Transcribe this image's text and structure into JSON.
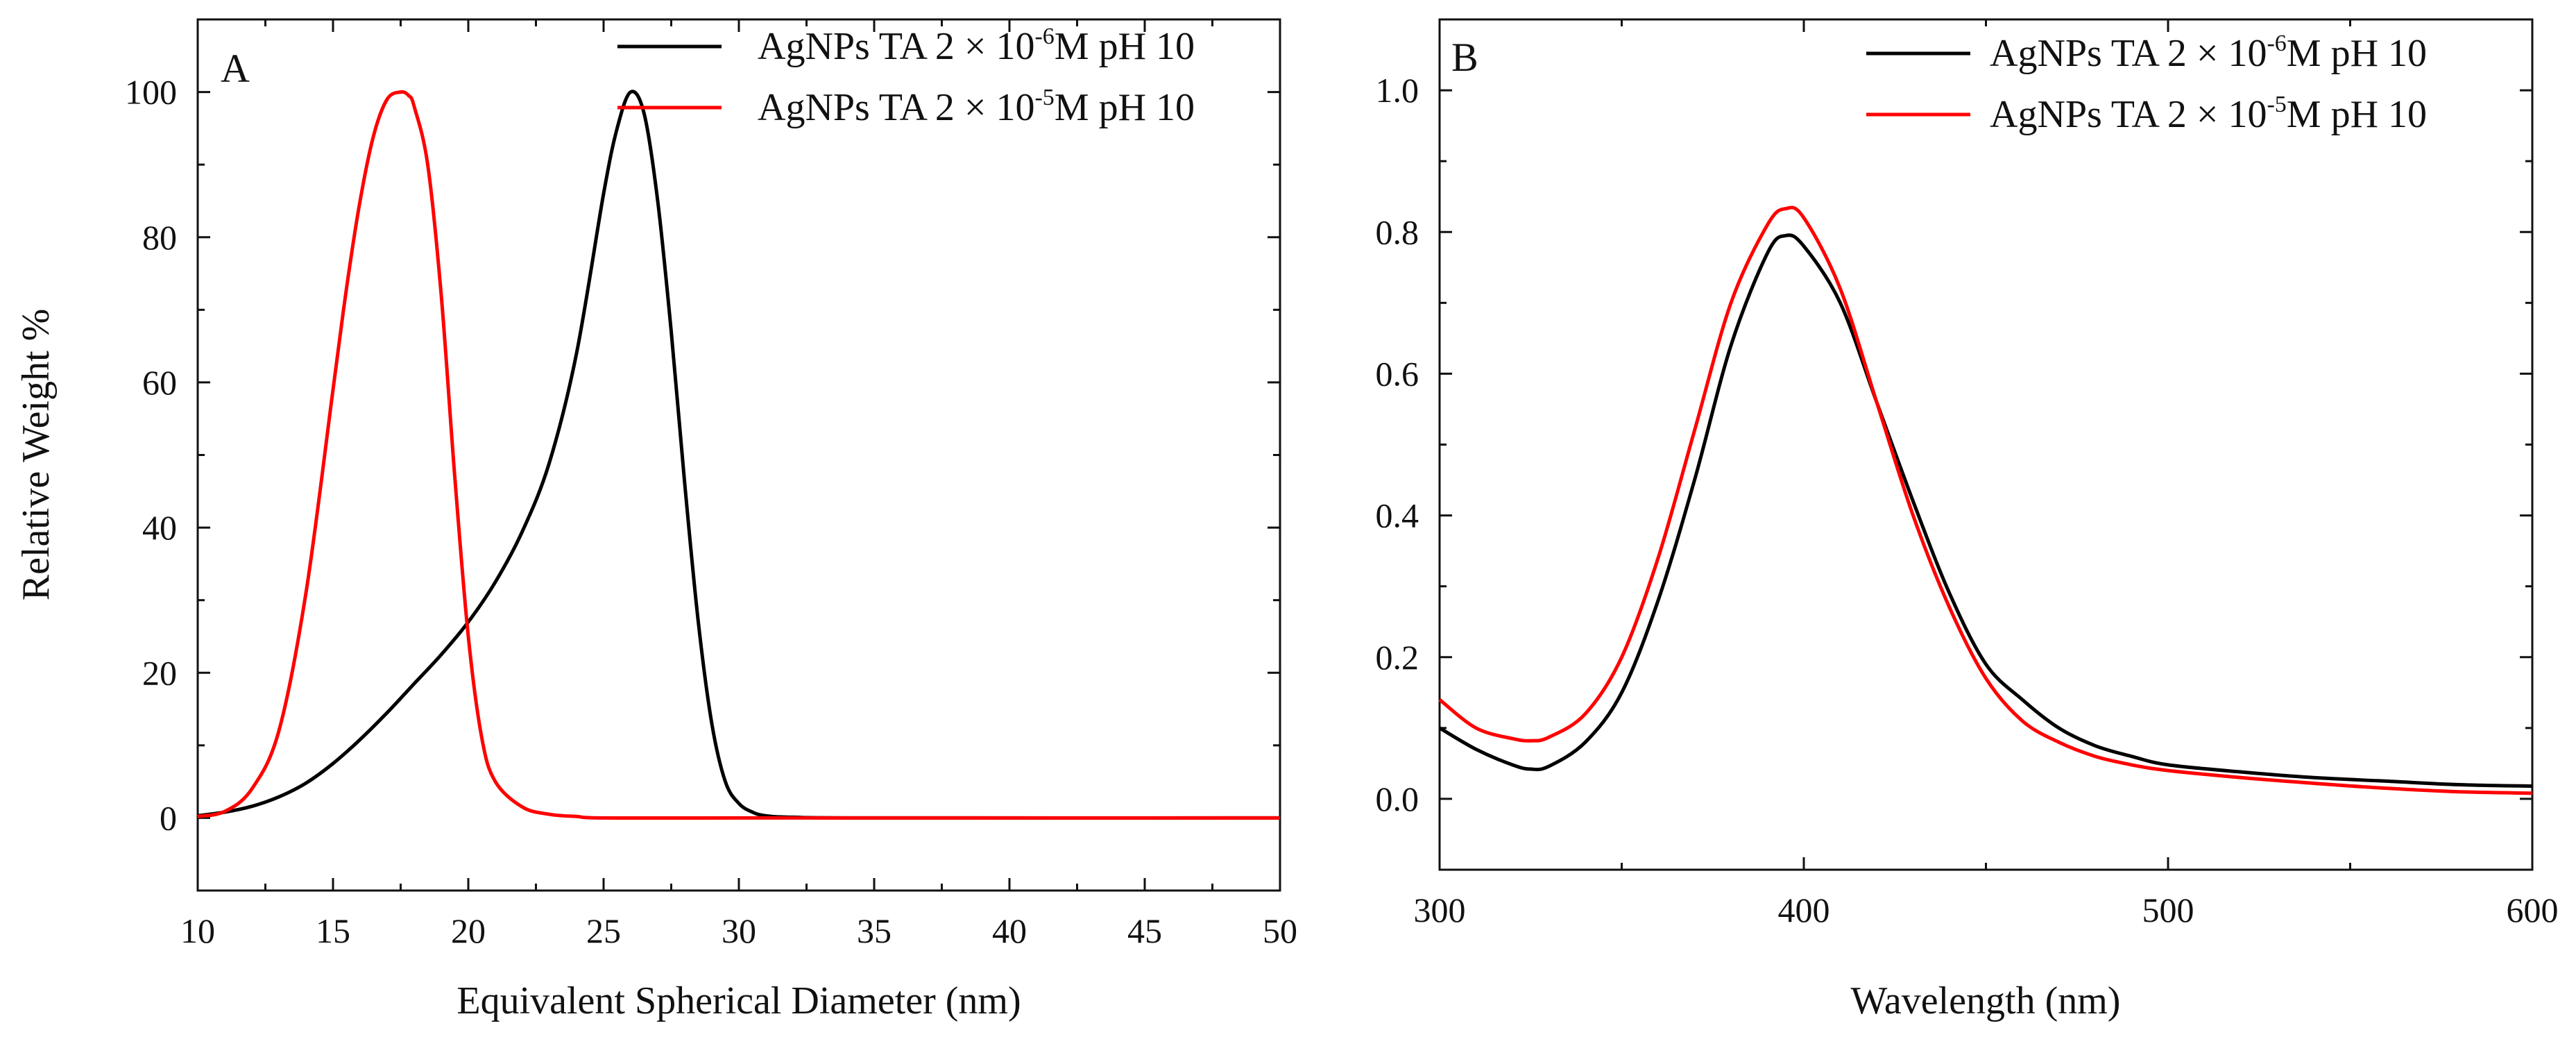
{
  "chart_data": [
    {
      "panel": "A",
      "type": "line",
      "xlabel": "Equivalent Spherical Diameter (nm)",
      "ylabel": "Relative Weight  %",
      "xlim": [
        10,
        50
      ],
      "ylim": [
        -10,
        110
      ],
      "xticks": [
        "10",
        "15",
        "20",
        "25",
        "30",
        "35",
        "40",
        "45",
        "50"
      ],
      "yticks": [
        "0",
        "20",
        "40",
        "60",
        "80",
        "100"
      ],
      "legend_position": "top-right",
      "series": [
        {
          "legend_prefix": "AgNPs TA 2 × 10",
          "legend_exp": "-6",
          "legend_suffix": "M pH 10",
          "color": "#000000",
          "x": [
            10,
            11,
            12,
            13,
            14,
            15,
            16,
            17,
            18,
            19,
            20,
            21,
            22,
            23,
            24,
            25,
            25.5,
            26,
            26.5,
            27,
            27.5,
            28,
            28.5,
            29,
            29.5,
            30,
            30.5,
            31,
            32,
            35,
            50
          ],
          "y": [
            0.3,
            0.8,
            1.6,
            2.9,
            4.8,
            7.5,
            10.8,
            14.5,
            18.5,
            22.5,
            27,
            32.5,
            39.5,
            49,
            64,
            86,
            95,
            100,
            97,
            85,
            67,
            46,
            27,
            13,
            5,
            2,
            0.8,
            0.3,
            0.1,
            0,
            0
          ]
        },
        {
          "legend_prefix": "AgNPs TA 2 × 10",
          "legend_exp": "-5",
          "legend_suffix": "M pH 10",
          "color": "#ff0000",
          "x": [
            10,
            11,
            12,
            13,
            14,
            15,
            15.5,
            16,
            16.5,
            17,
            17.5,
            17.8,
            18,
            18.5,
            19,
            19.5,
            20,
            20.5,
            21,
            22,
            23,
            24,
            25,
            30,
            50
          ],
          "y": [
            0.2,
            0.9,
            4,
            12,
            31,
            59,
            73,
            85,
            94,
            99,
            100,
            99.5,
            98,
            90,
            72,
            47,
            25,
            11,
            5,
            1.5,
            0.5,
            0.2,
            0,
            0,
            0
          ]
        }
      ]
    },
    {
      "panel": "B",
      "type": "line",
      "xlabel": "Wavelength (nm)",
      "ylabel": "",
      "xlim": [
        300,
        600
      ],
      "ylim": [
        -0.1,
        1.1
      ],
      "xticks": [
        "300",
        "400",
        "500",
        "600"
      ],
      "yticks": [
        "0.0",
        "0.2",
        "0.4",
        "0.6",
        "0.8",
        "1.0"
      ],
      "legend_position": "top-right",
      "series": [
        {
          "legend_prefix": "AgNPs TA 2 × 10",
          "legend_exp": "-6",
          "legend_suffix": "M pH 10",
          "color": "#000000",
          "x": [
            300,
            310,
            320,
            325,
            330,
            340,
            350,
            360,
            370,
            380,
            390,
            395,
            400,
            410,
            420,
            430,
            440,
            450,
            460,
            470,
            480,
            490,
            500,
            520,
            540,
            560,
            580,
            600
          ],
          "y": [
            0.1,
            0.07,
            0.048,
            0.042,
            0.046,
            0.08,
            0.15,
            0.28,
            0.45,
            0.64,
            0.77,
            0.795,
            0.78,
            0.7,
            0.56,
            0.42,
            0.29,
            0.19,
            0.14,
            0.1,
            0.075,
            0.06,
            0.048,
            0.038,
            0.03,
            0.025,
            0.02,
            0.018
          ]
        },
        {
          "legend_prefix": "AgNPs TA 2 × 10",
          "legend_exp": "-5",
          "legend_suffix": "M pH 10",
          "color": "#ff0000",
          "x": [
            300,
            310,
            320,
            325,
            330,
            340,
            350,
            360,
            370,
            380,
            390,
            395,
            400,
            410,
            420,
            430,
            440,
            450,
            460,
            470,
            480,
            490,
            500,
            520,
            540,
            560,
            580,
            600
          ],
          "y": [
            0.14,
            0.1,
            0.085,
            0.082,
            0.087,
            0.12,
            0.2,
            0.34,
            0.52,
            0.7,
            0.81,
            0.833,
            0.82,
            0.72,
            0.56,
            0.4,
            0.27,
            0.17,
            0.11,
            0.08,
            0.06,
            0.048,
            0.04,
            0.03,
            0.022,
            0.015,
            0.01,
            0.008
          ]
        }
      ]
    }
  ]
}
